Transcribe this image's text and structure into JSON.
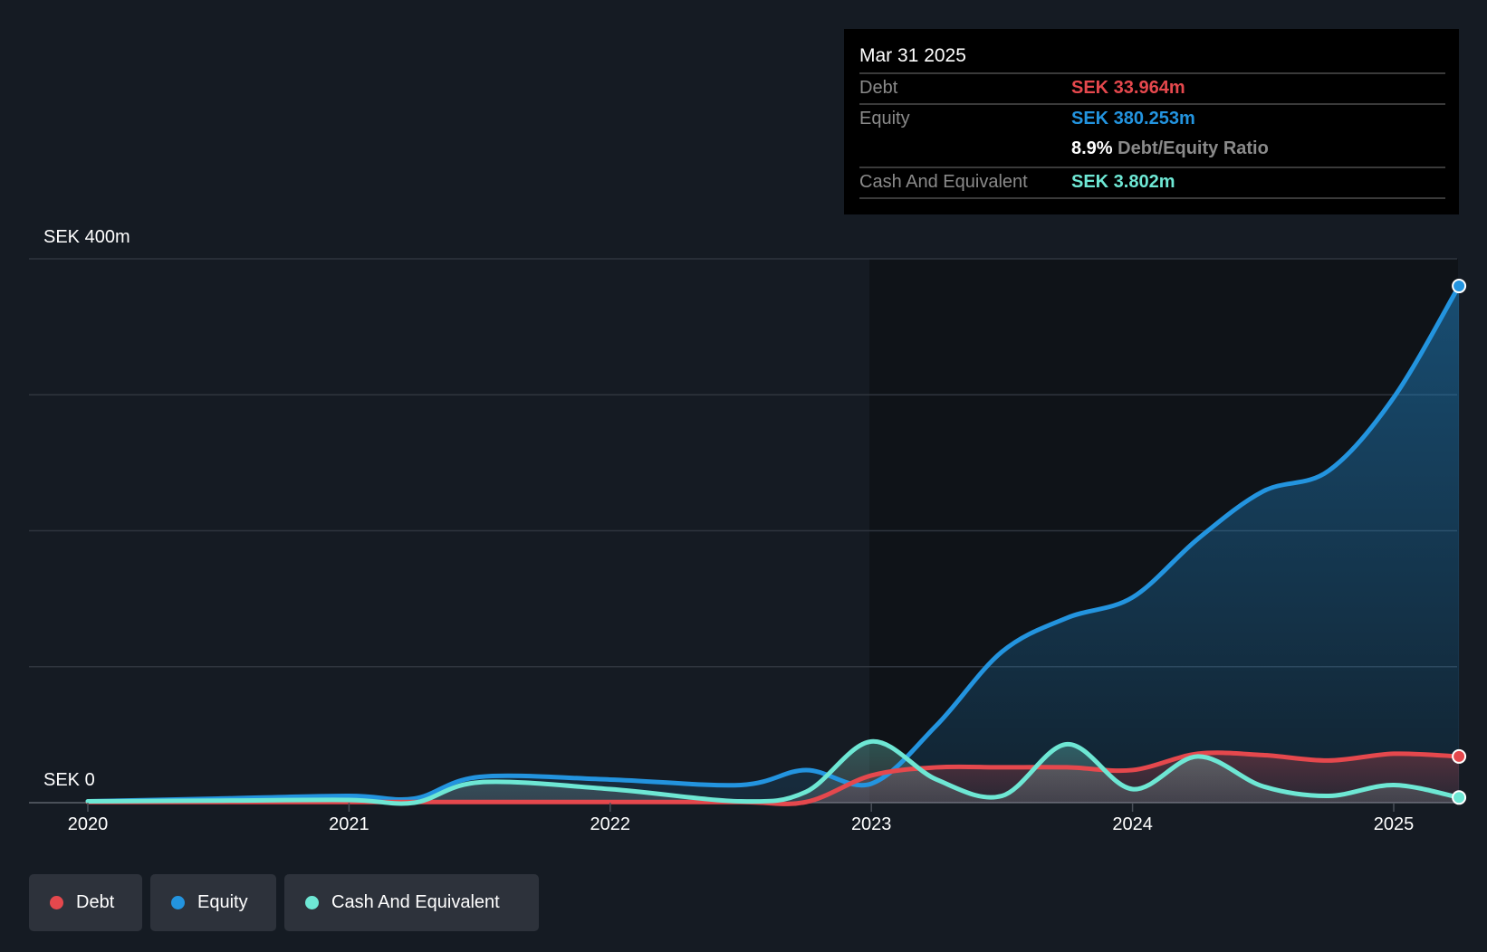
{
  "chart_data": {
    "type": "area",
    "currency_labels": {
      "top": "SEK 400m",
      "bottom": "SEK 0"
    },
    "ylim": [
      0,
      400
    ],
    "y_gridlines": [
      0,
      100,
      200,
      300,
      400
    ],
    "x_ticks": [
      "2020",
      "2021",
      "2022",
      "2023",
      "2024",
      "2025"
    ],
    "x": [
      2020,
      2020.5,
      2021,
      2021.25,
      2021.5,
      2022,
      2022.5,
      2022.75,
      2023,
      2023.25,
      2023.5,
      2023.75,
      2024,
      2024.25,
      2024.5,
      2024.75,
      2025,
      2025.25
    ],
    "series": [
      {
        "name": "Debt",
        "color": "#e5484d",
        "values": [
          0.5,
          0.5,
          0.5,
          0.5,
          0.5,
          0.5,
          0.5,
          0.5,
          20,
          26,
          26,
          26,
          24,
          36,
          35,
          31,
          36,
          34
        ]
      },
      {
        "name": "Equity",
        "color": "#2394df",
        "values": [
          1,
          3,
          5,
          3,
          19,
          17,
          13,
          24,
          14,
          57,
          111,
          136,
          151,
          194,
          229,
          244,
          298,
          380
        ]
      },
      {
        "name": "Cash And Equivalent",
        "color": "#6ee7d4",
        "values": [
          1,
          1.5,
          2,
          0,
          15,
          10,
          1,
          8,
          45,
          17,
          5,
          43,
          10,
          34,
          12,
          5,
          13,
          3.8
        ]
      }
    ],
    "legend_position": "bottom-left",
    "grid": true
  },
  "tooltip": {
    "date": "Mar 31 2025",
    "rows": [
      {
        "label": "Debt",
        "value": "SEK 33.964m",
        "color": "#e5484d"
      },
      {
        "label": "Equity",
        "value": "SEK 380.253m",
        "color": "#2394df"
      },
      {
        "ratio_value": "8.9%",
        "ratio_label": "Debt/Equity Ratio"
      },
      {
        "label": "Cash And Equivalent",
        "value": "SEK 3.802m",
        "color": "#6ee7d4"
      }
    ]
  },
  "legend": [
    {
      "label": "Debt",
      "color": "#e5484d"
    },
    {
      "label": "Equity",
      "color": "#2394df"
    },
    {
      "label": "Cash And Equivalent",
      "color": "#6ee7d4"
    }
  ]
}
